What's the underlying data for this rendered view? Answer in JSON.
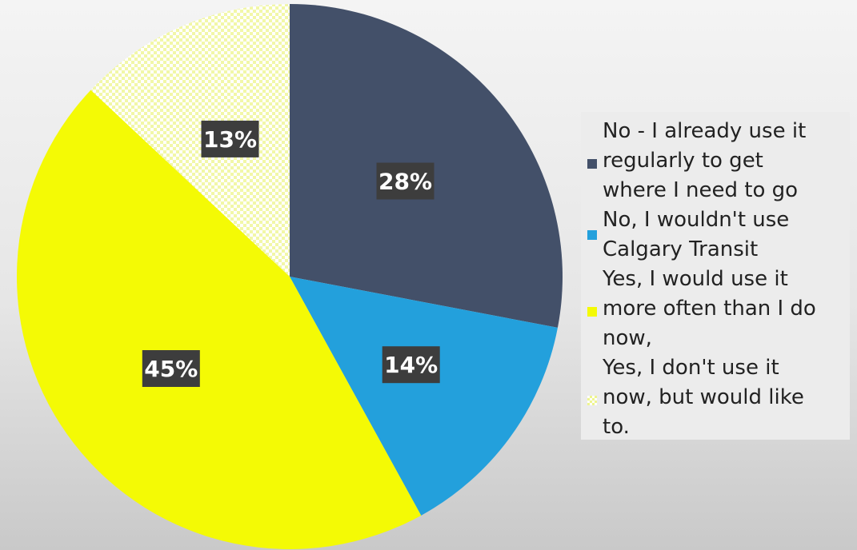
{
  "chart_data": {
    "type": "pie",
    "slices": [
      {
        "label": "No - I already use it regularly to get where I need to go",
        "value": 28,
        "display": "28%",
        "color": "#435069",
        "pattern": "solid"
      },
      {
        "label": "No, I wouldn't use Calgary Transit",
        "value": 14,
        "display": "14%",
        "color": "#23a0dc",
        "pattern": "solid"
      },
      {
        "label": "Yes, I would use it more often than I do now,",
        "value": 45,
        "display": "45%",
        "color": "#f4fa05",
        "pattern": "solid"
      },
      {
        "label": "Yes, I don't use it now, but would like to.",
        "value": 13,
        "display": "13%",
        "color": "#f4fa05",
        "pattern": "checker"
      }
    ],
    "start": "12 o'clock",
    "direction": "clockwise",
    "legend_position": "right",
    "data_label_style": "white bold text on dark box"
  },
  "legend": {
    "items": [
      {
        "text": "No - I already use it\nregularly to get\nwhere I need to go",
        "color": "#435069",
        "pattern": "solid"
      },
      {
        "text": "No, I wouldn't use\nCalgary Transit",
        "color": "#23a0dc",
        "pattern": "solid"
      },
      {
        "text": "Yes, I would use it\nmore often than I do\nnow,",
        "color": "#f4fa05",
        "pattern": "solid"
      },
      {
        "text": "Yes, I don't use it\nnow, but would like\nto.",
        "color": "#f4fa05",
        "pattern": "checker"
      }
    ]
  }
}
